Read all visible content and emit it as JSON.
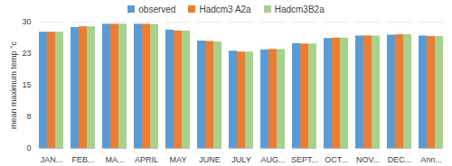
{
  "chart_data": {
    "type": "bar",
    "y_label": "mean maximum temp °c",
    "categories": [
      "JAN...",
      "FEB...",
      "MA...",
      "APRIL",
      "MAY",
      "JUNE",
      "JULY",
      "AUG...",
      "SEPT...",
      "OCT...",
      "NOV...",
      "DEC...",
      "Ann..."
    ],
    "series": [
      {
        "name": "observed",
        "color": "#5b9bd5",
        "values": [
          27.6,
          28.7,
          29.5,
          29.5,
          28.1,
          25.5,
          23.1,
          23.4,
          24.9,
          26.1,
          26.7,
          26.9,
          26.7
        ]
      },
      {
        "name": "Hadcm3 A2a",
        "color": "#ed7d31",
        "values": [
          27.6,
          28.9,
          29.5,
          29.5,
          27.9,
          25.4,
          22.9,
          23.5,
          24.8,
          26.2,
          26.7,
          27.0,
          26.6
        ]
      },
      {
        "name": "Hadcm3B2a",
        "color": "#a9d18e",
        "values": [
          27.6,
          28.9,
          29.5,
          29.4,
          27.9,
          25.3,
          22.9,
          23.5,
          24.8,
          26.2,
          26.7,
          27.0,
          26.6
        ]
      }
    ],
    "ylim": [
      0,
      30
    ],
    "yticks": [
      0,
      {
        "value": 7.5,
        "label": "8"
      },
      15,
      {
        "value": 22.5,
        "label": "23"
      },
      30
    ],
    "grid": true,
    "legend": "top"
  }
}
